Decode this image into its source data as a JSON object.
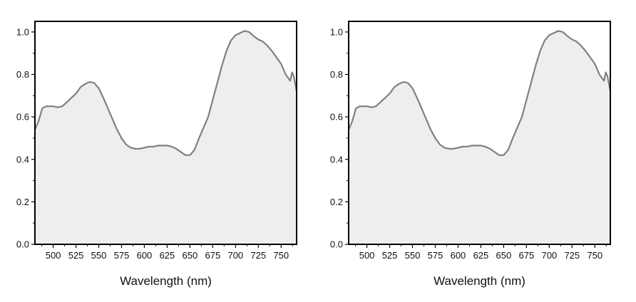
{
  "chart_data": [
    {
      "type": "area",
      "title": "",
      "xlabel": "Wavelength (nm)",
      "ylabel": "",
      "xlim": [
        480,
        767
      ],
      "ylim": [
        0,
        1.05
      ],
      "xticks": [
        500,
        525,
        550,
        575,
        600,
        625,
        650,
        675,
        700,
        725,
        750
      ],
      "yticks": [
        0.0,
        0.2,
        0.4,
        0.6,
        0.8,
        1.0
      ],
      "xtick_labels": [
        "500",
        "525",
        "550",
        "575",
        "600",
        "625",
        "650",
        "675",
        "700",
        "725",
        "750"
      ],
      "ytick_labels": [
        "0.0",
        "0.2",
        "0.4",
        "0.6",
        "0.8",
        "1.0"
      ],
      "grid": false,
      "legend": "none",
      "line_color": "#808080",
      "fill_color": "#eeeeee",
      "series": [
        {
          "x": [
            480,
            484,
            488,
            492,
            496,
            500,
            505,
            510,
            515,
            520,
            525,
            530,
            535,
            540,
            545,
            550,
            555,
            560,
            565,
            570,
            575,
            580,
            585,
            590,
            595,
            600,
            605,
            610,
            615,
            620,
            625,
            630,
            635,
            640,
            645,
            650,
            655,
            660,
            665,
            670,
            675,
            680,
            685,
            690,
            695,
            700,
            705,
            710,
            715,
            720,
            725,
            730,
            735,
            740,
            745,
            750,
            755,
            760,
            762,
            764,
            767
          ],
          "y": [
            0.54,
            0.58,
            0.64,
            0.65,
            0.65,
            0.65,
            0.645,
            0.65,
            0.67,
            0.69,
            0.71,
            0.74,
            0.755,
            0.765,
            0.76,
            0.735,
            0.69,
            0.64,
            0.59,
            0.54,
            0.5,
            0.47,
            0.455,
            0.45,
            0.45,
            0.455,
            0.46,
            0.46,
            0.465,
            0.465,
            0.465,
            0.46,
            0.45,
            0.435,
            0.42,
            0.42,
            0.445,
            0.5,
            0.55,
            0.6,
            0.68,
            0.76,
            0.84,
            0.91,
            0.96,
            0.985,
            0.995,
            1.005,
            1.0,
            0.98,
            0.965,
            0.955,
            0.935,
            0.91,
            0.88,
            0.85,
            0.8,
            0.77,
            0.81,
            0.79,
            0.72
          ]
        }
      ]
    },
    {
      "type": "area",
      "title": "",
      "xlabel": "Wavelength (nm)",
      "ylabel": "",
      "xlim": [
        480,
        767
      ],
      "ylim": [
        0,
        1.05
      ],
      "xticks": [
        500,
        525,
        550,
        575,
        600,
        625,
        650,
        675,
        700,
        725,
        750
      ],
      "yticks": [
        0.0,
        0.2,
        0.4,
        0.6,
        0.8,
        1.0
      ],
      "xtick_labels": [
        "500",
        "525",
        "550",
        "575",
        "600",
        "625",
        "650",
        "675",
        "700",
        "725",
        "750"
      ],
      "ytick_labels": [
        "0.0",
        "0.2",
        "0.4",
        "0.6",
        "0.8",
        "1.0"
      ],
      "grid": false,
      "legend": "none",
      "line_color": "#808080",
      "fill_color": "#eeeeee",
      "series": [
        {
          "x": [
            480,
            484,
            488,
            492,
            496,
            500,
            505,
            510,
            515,
            520,
            525,
            530,
            535,
            540,
            545,
            550,
            555,
            560,
            565,
            570,
            575,
            580,
            585,
            590,
            595,
            600,
            605,
            610,
            615,
            620,
            625,
            630,
            635,
            640,
            645,
            650,
            655,
            660,
            665,
            670,
            675,
            680,
            685,
            690,
            695,
            700,
            705,
            710,
            715,
            720,
            725,
            730,
            735,
            740,
            745,
            750,
            755,
            760,
            762,
            764,
            767
          ],
          "y": [
            0.54,
            0.58,
            0.64,
            0.65,
            0.65,
            0.65,
            0.645,
            0.65,
            0.67,
            0.69,
            0.71,
            0.74,
            0.755,
            0.765,
            0.76,
            0.735,
            0.69,
            0.64,
            0.59,
            0.54,
            0.5,
            0.47,
            0.455,
            0.45,
            0.45,
            0.455,
            0.46,
            0.46,
            0.465,
            0.465,
            0.465,
            0.46,
            0.45,
            0.435,
            0.42,
            0.42,
            0.445,
            0.5,
            0.55,
            0.6,
            0.68,
            0.76,
            0.84,
            0.91,
            0.96,
            0.985,
            0.995,
            1.005,
            1.0,
            0.98,
            0.965,
            0.955,
            0.935,
            0.91,
            0.88,
            0.85,
            0.8,
            0.77,
            0.81,
            0.79,
            0.72
          ]
        }
      ]
    }
  ]
}
